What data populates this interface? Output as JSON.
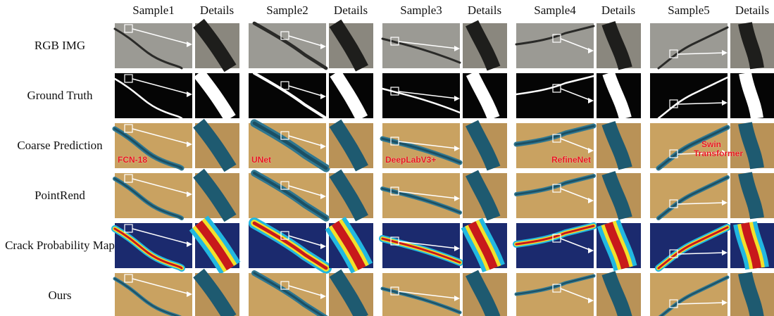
{
  "header": {
    "columns": [
      {
        "sample": "Sample1",
        "details": "Details"
      },
      {
        "sample": "Sample2",
        "details": "Details"
      },
      {
        "sample": "Sample3",
        "details": "Details"
      },
      {
        "sample": "Sample4",
        "details": "Details"
      },
      {
        "sample": "Sample5",
        "details": "Details"
      }
    ]
  },
  "rows": [
    "RGB IMG",
    "Ground Truth",
    "Coarse Prediction",
    "PointRend",
    "Crack Probability Map",
    "Ours"
  ],
  "method_labels": [
    "FCN-18",
    "UNet",
    "DeepLabV3+",
    "RefineNet",
    "Swin Transformer"
  ]
}
